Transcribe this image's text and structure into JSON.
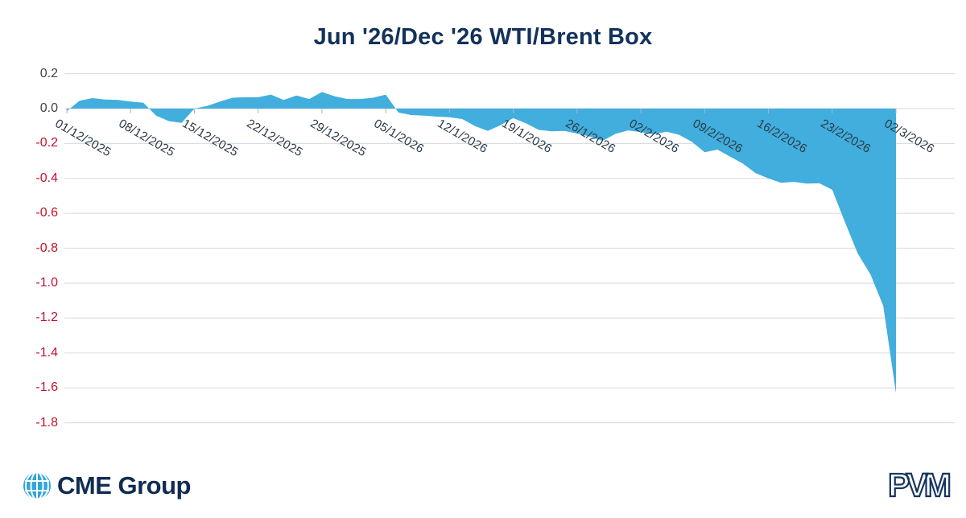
{
  "chart": {
    "title": "Jun '26/Dec '26 WTI/Brent Box"
  },
  "chart_data": {
    "type": "area",
    "title": "Jun '26/Dec '26 WTI/Brent Box",
    "xlabel": "",
    "ylabel": "",
    "ylim": [
      -1.9,
      0.25
    ],
    "grid": "horizontal",
    "legend": "none",
    "area_color": "#41aedd",
    "gridline_color": "#dbdfe3",
    "tick_mark_color": "#aeb3ba",
    "positive_tick_color": "#3f4449",
    "negative_tick_color": "#c8102e",
    "x_label_color": "#2b3947",
    "y_ticks": [
      "0.2",
      "0.0",
      "-0.2",
      "-0.4",
      "-0.6",
      "-0.8",
      "-1.0",
      "-1.2",
      "-1.4",
      "-1.6",
      "-1.8"
    ],
    "x_tick_labels": [
      "01/12/2025",
      "08/12/2025",
      "15/12/2025",
      "22/12/2025",
      "29/12/2025",
      "05/1/2026",
      "12/1/2026",
      "19/1/2026",
      "26/1/2026",
      "02/2/2026",
      "09/2/2026",
      "16/2/2026",
      "23/2/2026",
      "02/3/2026"
    ],
    "x": [
      "01/12/2025",
      "02/12/2025",
      "03/12/2025",
      "04/12/2025",
      "05/12/2025",
      "08/12/2025",
      "09/12/2025",
      "10/12/2025",
      "11/12/2025",
      "12/12/2025",
      "15/12/2025",
      "16/12/2025",
      "17/12/2025",
      "18/12/2025",
      "19/12/2025",
      "22/12/2025",
      "23/12/2025",
      "24/12/2025",
      "25/12/2025",
      "26/12/2025",
      "29/12/2025",
      "30/12/2025",
      "31/12/2025",
      "01/1/2026",
      "02/1/2026",
      "05/1/2026",
      "06/1/2026",
      "07/1/2026",
      "08/1/2026",
      "09/1/2026",
      "12/1/2026",
      "13/1/2026",
      "14/1/2026",
      "15/1/2026",
      "16/1/2026",
      "19/1/2026",
      "20/1/2026",
      "21/1/2026",
      "22/1/2026",
      "23/1/2026",
      "26/1/2026",
      "27/1/2026",
      "28/1/2026",
      "29/1/2026",
      "30/1/2026",
      "02/2/2026",
      "03/2/2026",
      "04/2/2026",
      "05/2/2026",
      "06/2/2026",
      "09/2/2026",
      "10/2/2026",
      "11/2/2026",
      "12/2/2026",
      "13/2/2026",
      "16/2/2026",
      "17/2/2026",
      "18/2/2026",
      "19/2/2026",
      "20/2/2026",
      "23/2/2026",
      "24/2/2026",
      "25/2/2026",
      "26/2/2026",
      "27/2/2026",
      "02/3/2026"
    ],
    "values": [
      -0.015,
      0.045,
      0.06,
      0.052,
      0.05,
      0.04,
      0.033,
      -0.04,
      -0.072,
      -0.082,
      0.0,
      0.015,
      0.04,
      0.062,
      0.065,
      0.065,
      0.08,
      0.05,
      0.075,
      0.055,
      0.095,
      0.07,
      0.055,
      0.055,
      0.062,
      0.08,
      -0.023,
      -0.037,
      -0.04,
      -0.046,
      -0.05,
      -0.06,
      -0.1,
      -0.128,
      -0.095,
      -0.055,
      -0.085,
      -0.122,
      -0.13,
      -0.128,
      -0.143,
      -0.16,
      -0.185,
      -0.145,
      -0.125,
      -0.135,
      -0.148,
      -0.132,
      -0.15,
      -0.19,
      -0.25,
      -0.235,
      -0.275,
      -0.315,
      -0.37,
      -0.4,
      -0.425,
      -0.42,
      -0.43,
      -0.428,
      -0.465,
      -0.65,
      -0.83,
      -0.95,
      -1.13,
      -1.63
    ]
  },
  "footer": {
    "cme_label": "CME Group",
    "pvm_label": "PVM"
  }
}
